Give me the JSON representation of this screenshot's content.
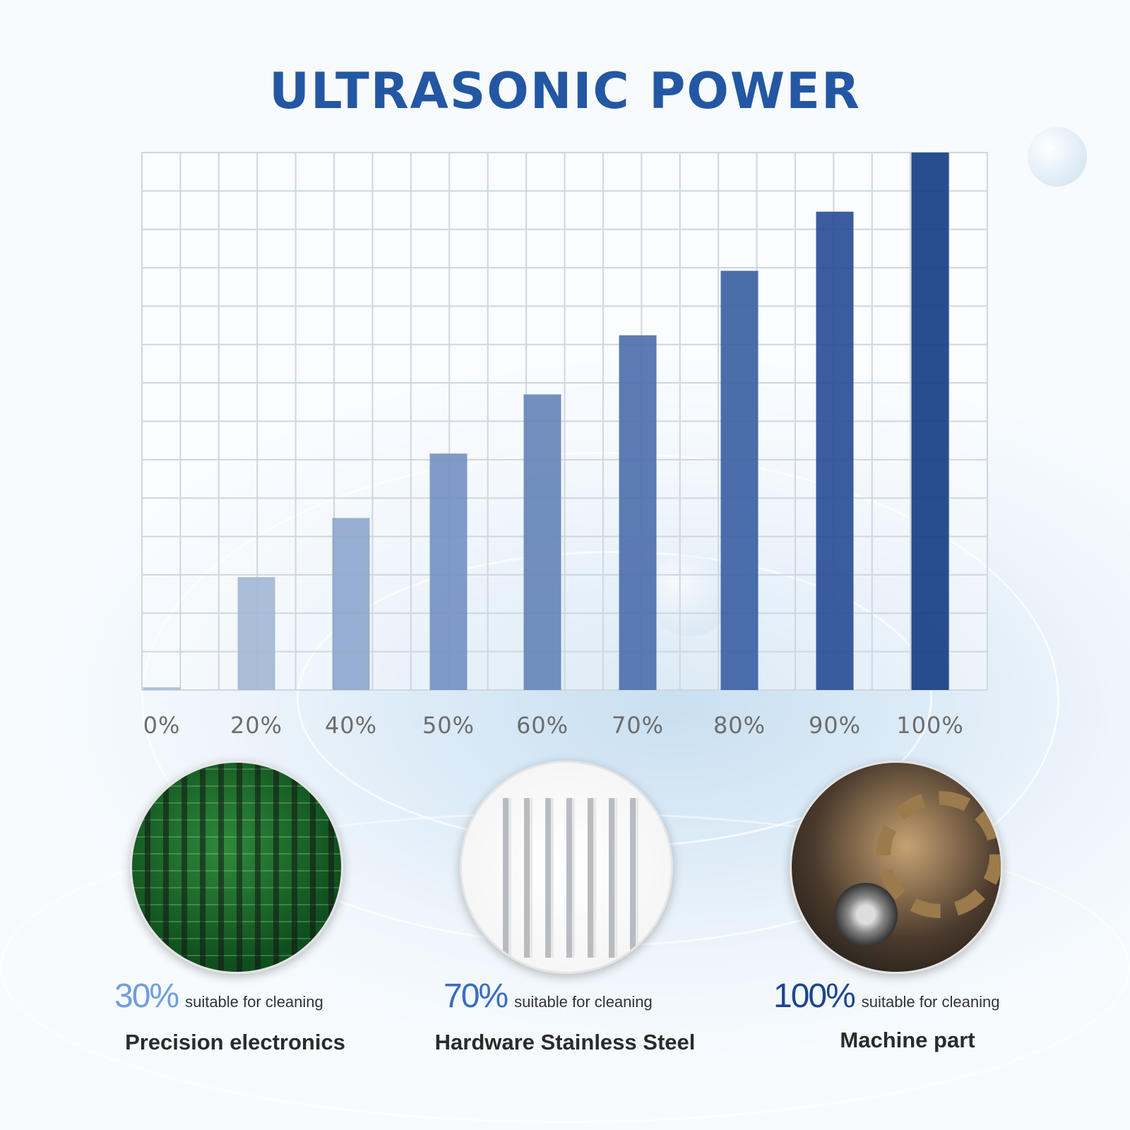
{
  "title": "ULTRASONIC POWER",
  "chart_data": {
    "type": "bar",
    "title": "ULTRASONIC POWER",
    "categories": [
      "0%",
      "20%",
      "40%",
      "50%",
      "60%",
      "70%",
      "80%",
      "90%",
      "100%"
    ],
    "values": [
      0.5,
      21,
      32,
      44,
      55,
      66,
      78,
      89,
      100
    ],
    "ylim": [
      0,
      100
    ],
    "grid": true,
    "colors": [
      "#a9bcd8",
      "#a3b7d6",
      "#8ea7cd",
      "#7593c2",
      "#6685b9",
      "#4e70ad",
      "#3c62a4",
      "#2a4f97",
      "#173f86"
    ]
  },
  "applications": [
    {
      "percent": "30%",
      "percent_color": "#6f9ee0",
      "suffix": "suitable for cleaning",
      "name": "Precision electronics",
      "image": "circuit-board"
    },
    {
      "percent": "70%",
      "percent_color": "#3a6dbd",
      "suffix": "suitable for cleaning",
      "name": "Hardware Stainless Steel",
      "image": "dental-tools"
    },
    {
      "percent": "100%",
      "percent_color": "#1d4590",
      "suffix": "suitable for cleaning",
      "name": "Machine part",
      "image": "gears"
    }
  ]
}
